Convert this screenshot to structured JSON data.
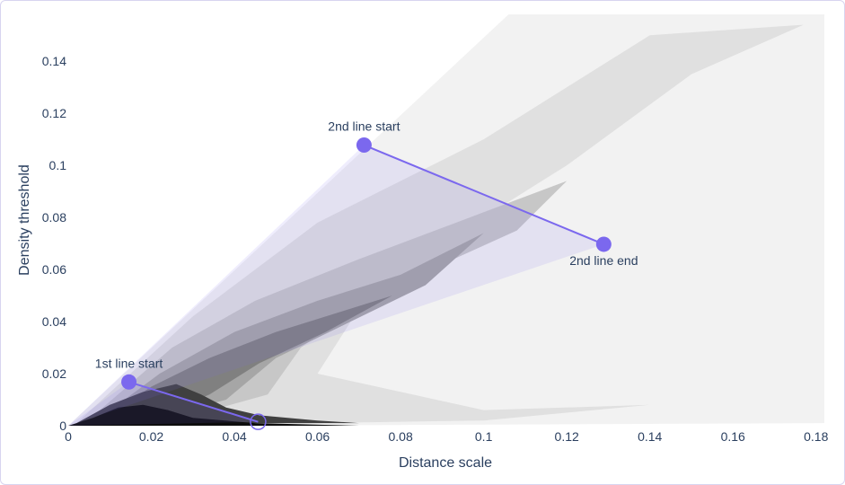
{
  "chart_data": {
    "type": "heatmap",
    "title": "",
    "xlabel": "Distance scale",
    "ylabel": "Density threshold",
    "xlim": [
      0,
      0.182
    ],
    "ylim": [
      0,
      0.158
    ],
    "x_ticks": [
      {
        "value": 0,
        "label": "0"
      },
      {
        "value": 0.02,
        "label": "0.02"
      },
      {
        "value": 0.04,
        "label": "0.04"
      },
      {
        "value": 0.06,
        "label": "0.06"
      },
      {
        "value": 0.08,
        "label": "0.08"
      },
      {
        "value": 0.1,
        "label": "0.1"
      },
      {
        "value": 0.12,
        "label": "0.12"
      },
      {
        "value": 0.14,
        "label": "0.14"
      },
      {
        "value": 0.16,
        "label": "0.16"
      },
      {
        "value": 0.18,
        "label": "0.18"
      }
    ],
    "y_ticks": [
      {
        "value": 0,
        "label": "0"
      },
      {
        "value": 0.02,
        "label": "0.02"
      },
      {
        "value": 0.04,
        "label": "0.04"
      },
      {
        "value": 0.06,
        "label": "0.06"
      },
      {
        "value": 0.08,
        "label": "0.08"
      },
      {
        "value": 0.1,
        "label": "0.1"
      },
      {
        "value": 0.12,
        "label": "0.12"
      },
      {
        "value": 0.14,
        "label": "0.14"
      }
    ],
    "grid": false,
    "colorscale": [
      "#ffffff",
      "#000000"
    ],
    "density_bands": [
      {
        "level": 0.05,
        "polygon": [
          [
            0,
            0
          ],
          [
            0.106,
            0.158
          ],
          [
            0.182,
            0.158
          ],
          [
            0.182,
            0.001
          ],
          [
            0.04,
            0
          ]
        ]
      },
      {
        "level": 0.12,
        "polygon": [
          [
            0.002,
            0.001
          ],
          [
            0.03,
            0.042
          ],
          [
            0.06,
            0.078
          ],
          [
            0.1,
            0.11
          ],
          [
            0.14,
            0.15
          ],
          [
            0.177,
            0.154
          ],
          [
            0.15,
            0.135
          ],
          [
            0.12,
            0.1
          ],
          [
            0.1,
            0.08
          ],
          [
            0.08,
            0.06
          ],
          [
            0.07,
            0.045
          ],
          [
            0.06,
            0.02
          ],
          [
            0.1,
            0.006
          ],
          [
            0.14,
            0.008
          ],
          [
            0.1,
            0.002
          ],
          [
            0.06,
            0.001
          ]
        ]
      },
      {
        "level": 0.22,
        "polygon": [
          [
            0.004,
            0.001
          ],
          [
            0.025,
            0.03
          ],
          [
            0.045,
            0.048
          ],
          [
            0.07,
            0.064
          ],
          [
            0.1,
            0.082
          ],
          [
            0.12,
            0.094
          ],
          [
            0.108,
            0.075
          ],
          [
            0.09,
            0.062
          ],
          [
            0.07,
            0.046
          ],
          [
            0.056,
            0.03
          ],
          [
            0.048,
            0.012
          ],
          [
            0.03,
            0.004
          ]
        ]
      },
      {
        "level": 0.35,
        "polygon": [
          [
            0.006,
            0.001
          ],
          [
            0.022,
            0.02
          ],
          [
            0.04,
            0.036
          ],
          [
            0.06,
            0.048
          ],
          [
            0.08,
            0.058
          ],
          [
            0.1,
            0.074
          ],
          [
            0.086,
            0.054
          ],
          [
            0.068,
            0.04
          ],
          [
            0.05,
            0.026
          ],
          [
            0.038,
            0.01
          ],
          [
            0.022,
            0.003
          ]
        ]
      },
      {
        "level": 0.5,
        "polygon": [
          [
            0.007,
            0.001
          ],
          [
            0.02,
            0.015
          ],
          [
            0.034,
            0.026
          ],
          [
            0.05,
            0.036
          ],
          [
            0.066,
            0.044
          ],
          [
            0.078,
            0.05
          ],
          [
            0.062,
            0.036
          ],
          [
            0.046,
            0.024
          ],
          [
            0.034,
            0.012
          ],
          [
            0.022,
            0.004
          ]
        ]
      },
      {
        "level": 0.75,
        "polygon": [
          [
            0.002,
            0.001
          ],
          [
            0.01,
            0.008
          ],
          [
            0.018,
            0.013
          ],
          [
            0.026,
            0.016
          ],
          [
            0.032,
            0.012
          ],
          [
            0.038,
            0.007
          ],
          [
            0.046,
            0.004
          ],
          [
            0.06,
            0.002
          ],
          [
            0.07,
            0.001
          ]
        ]
      },
      {
        "level": 0.95,
        "polygon": [
          [
            0.0,
            0.0
          ],
          [
            0.006,
            0.003
          ],
          [
            0.012,
            0.007
          ],
          [
            0.018,
            0.008
          ],
          [
            0.024,
            0.006
          ],
          [
            0.03,
            0.003
          ],
          [
            0.045,
            0.001
          ],
          [
            0.07,
            0.0
          ]
        ]
      }
    ],
    "lines": [
      {
        "start": {
          "x": 0.0146,
          "y": 0.0168,
          "label": "1st line start"
        },
        "end": {
          "x": 0.0457,
          "y": 0.0015
        },
        "color": "#7b68ee"
      },
      {
        "start": {
          "x": 0.0712,
          "y": 0.1078,
          "label": "2nd line start"
        },
        "end": {
          "x": 0.1289,
          "y": 0.0697,
          "label": "2nd line end"
        },
        "color": "#7b68ee"
      }
    ],
    "cone_fill": "#7b68ee"
  }
}
